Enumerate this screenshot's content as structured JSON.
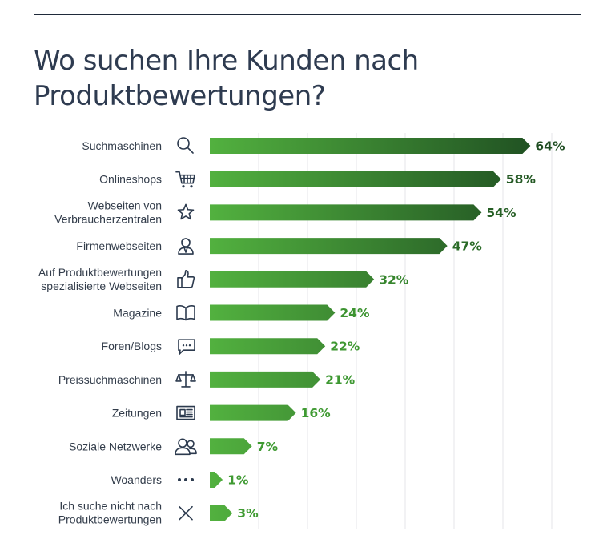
{
  "title": "Wo suchen Ihre Kunden nach Produktbewertungen?",
  "colors": {
    "bar_light": "#52b13f",
    "bar_dark": "#1e4d21",
    "label_light": "#3f9a32",
    "label_dark": "#1e4d21"
  },
  "chart_data": {
    "type": "bar",
    "orientation": "horizontal",
    "title": "Wo suchen Ihre Kunden nach Produktbewertungen?",
    "unit": "%",
    "xlim": [
      0,
      70
    ],
    "grid": true,
    "categories": [
      {
        "label": [
          "Suchmaschinen"
        ],
        "value": 64,
        "value_label": "64%",
        "icon": "search-icon"
      },
      {
        "label": [
          "Onlineshops"
        ],
        "value": 58,
        "value_label": "58%",
        "icon": "cart-icon"
      },
      {
        "label": [
          "Webseiten von",
          "Verbraucherzentralen"
        ],
        "value": 54,
        "value_label": "54%",
        "icon": "star-icon"
      },
      {
        "label": [
          "Firmenwebseiten"
        ],
        "value": 47,
        "value_label": "47%",
        "icon": "person-icon"
      },
      {
        "label": [
          "Auf Produktbewertungen",
          "spezialisierte Webseiten"
        ],
        "value": 32,
        "value_label": "32%",
        "icon": "thumbs-up-icon"
      },
      {
        "label": [
          "Magazine"
        ],
        "value": 24,
        "value_label": "24%",
        "icon": "book-icon"
      },
      {
        "label": [
          "Foren/Blogs"
        ],
        "value": 22,
        "value_label": "22%",
        "icon": "chat-icon"
      },
      {
        "label": [
          "Preissuchmaschinen"
        ],
        "value": 21,
        "value_label": "21%",
        "icon": "scale-icon"
      },
      {
        "label": [
          "Zeitungen"
        ],
        "value": 16,
        "value_label": "16%",
        "icon": "newspaper-icon"
      },
      {
        "label": [
          "Soziale Netzwerke"
        ],
        "value": 7,
        "value_label": "7%",
        "icon": "people-icon"
      },
      {
        "label": [
          "Woanders"
        ],
        "value": 1,
        "value_label": "1%",
        "icon": "dots-icon"
      },
      {
        "label": [
          "Ich suche nicht nach",
          "Produktbewertungen"
        ],
        "value": 3,
        "value_label": "3%",
        "icon": "x-icon"
      }
    ]
  }
}
